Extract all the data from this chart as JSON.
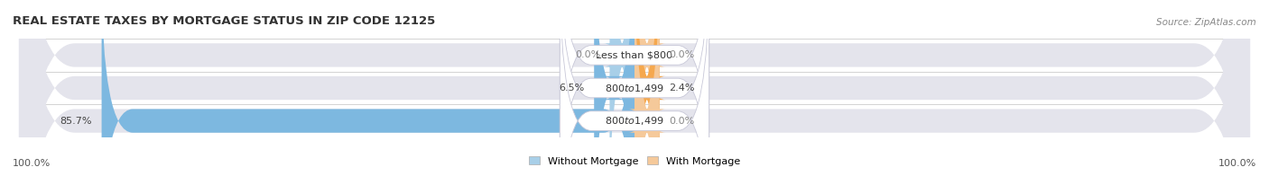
{
  "title": "REAL ESTATE TAXES BY MORTGAGE STATUS IN ZIP CODE 12125",
  "source": "Source: ZipAtlas.com",
  "rows": [
    {
      "label": "Less than $800",
      "without_mortgage": 0.0,
      "with_mortgage": 0.0,
      "without_label": "0.0%",
      "with_label": "0.0%"
    },
    {
      "label": "$800 to $1,499",
      "without_mortgage": 6.5,
      "with_mortgage": 2.4,
      "without_label": "6.5%",
      "with_label": "2.4%"
    },
    {
      "label": "$800 to $1,499",
      "without_mortgage": 85.7,
      "with_mortgage": 0.0,
      "without_label": "85.7%",
      "with_label": "0.0%"
    }
  ],
  "color_without": "#7db8e0",
  "color_with": "#f5a84e",
  "color_without_stub": "#a8cfe8",
  "color_with_stub": "#f5c99a",
  "bar_bg_color": "#e4e4ec",
  "legend_without": "Without Mortgage",
  "legend_with": "With Mortgage",
  "title_fontsize": 9.5,
  "label_fontsize": 8,
  "tick_fontsize": 8,
  "source_fontsize": 7.5
}
